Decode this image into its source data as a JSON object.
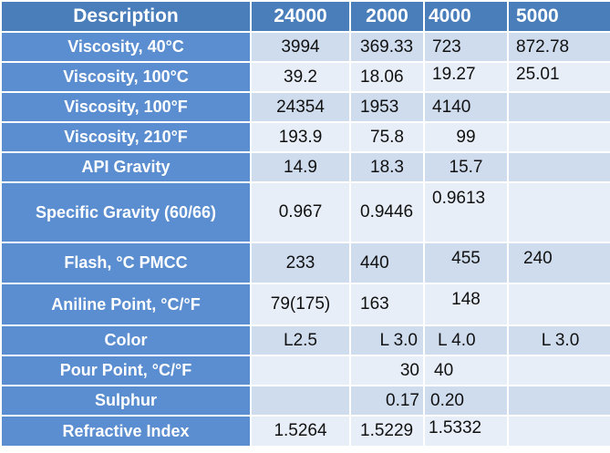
{
  "header": {
    "description": "Description",
    "col_24000": "24000",
    "col_2000": "2000",
    "col_4000": "4000",
    "col_5000": "5000"
  },
  "rows": [
    {
      "label": "Viscosity, 40°C",
      "v24000": "3994",
      "v2000": "369.33",
      "v4000": "723",
      "v5000": "872.78"
    },
    {
      "label": "Viscosity, 100°C",
      "v24000": "39.2",
      "v2000": "18.06",
      "v4000": "19.27",
      "v5000": "25.01"
    },
    {
      "label": "Viscosity, 100°F",
      "v24000": "24354",
      "v2000": "1953",
      "v4000": "4140",
      "v5000": ""
    },
    {
      "label": "Viscosity, 210°F",
      "v24000": "193.9",
      "v2000": "75.8",
      "v4000": "99",
      "v5000": ""
    },
    {
      "label": "API Gravity",
      "v24000": "14.9",
      "v2000": "18.3",
      "v4000": "15.7",
      "v5000": ""
    },
    {
      "label": "Specific Gravity (60/66)",
      "v24000": "0.967",
      "v2000": "0.9446",
      "v4000": "0.9613",
      "v5000": ""
    },
    {
      "label": "Flash, °C PMCC",
      "v24000": "233",
      "v2000": "440",
      "v4000": "455",
      "v5000": "240"
    },
    {
      "label": "Aniline Point, °C/°F",
      "v24000": "79(175)",
      "v2000": "163",
      "v4000": "148",
      "v5000": ""
    },
    {
      "label": "Color",
      "v24000": "L2.5",
      "v2000": "L 3.0",
      "v4000": "L 4.0",
      "v5000": "L 3.0"
    },
    {
      "label": "Pour Point, °C/°F",
      "v24000": "",
      "v2000": "30",
      "v4000": "40",
      "v5000": ""
    },
    {
      "label": "Sulphur",
      "v24000": "",
      "v2000": "0.17",
      "v4000": "0.20",
      "v5000": ""
    },
    {
      "label": "Refractive Index",
      "v24000": "1.5264",
      "v2000": "1.5229",
      "v4000": "1.5332",
      "v5000": ""
    }
  ],
  "colors": {
    "header_bg": "#4a7ebb",
    "row_label_bg": "#5b8ed0",
    "cell_odd_bg": "#cfdcee",
    "cell_even_bg": "#e8eef7",
    "header_text": "#ffffff"
  }
}
